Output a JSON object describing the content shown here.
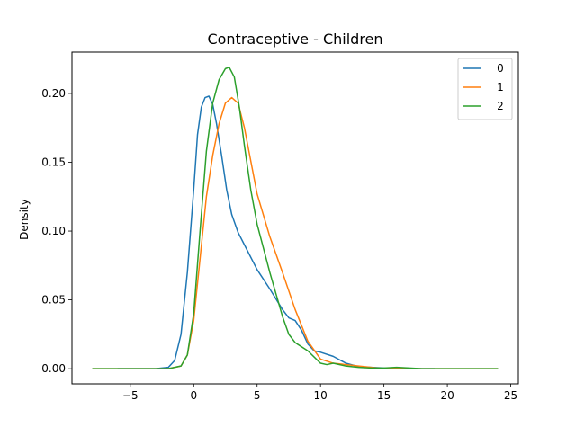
{
  "chart_data": {
    "type": "line",
    "title": "Contraceptive - Children",
    "xlabel": "",
    "ylabel": "Density",
    "xlim": [
      -9.6,
      25.6
    ],
    "ylim": [
      -0.011,
      0.23
    ],
    "xticks": [
      -5,
      0,
      5,
      10,
      15,
      20,
      25
    ],
    "xtick_labels": [
      "−5",
      "0",
      "5",
      "10",
      "15",
      "20",
      "25"
    ],
    "yticks": [
      0.0,
      0.05,
      0.1,
      0.15,
      0.2
    ],
    "ytick_labels": [
      "0.00",
      "0.05",
      "0.10",
      "0.15",
      "0.20"
    ],
    "grid": false,
    "legend_position": "top-right",
    "series": [
      {
        "name": "0",
        "color": "#1f77b4",
        "x": [
          -6.0,
          -3.0,
          -2.0,
          -1.5,
          -1.0,
          -0.5,
          0.0,
          0.3,
          0.6,
          0.9,
          1.2,
          1.5,
          1.8,
          2.2,
          2.6,
          3.0,
          3.5,
          4.0,
          5.0,
          6.0,
          7.0,
          7.5,
          8.0,
          8.5,
          9.0,
          9.5,
          10.0,
          11.0,
          12.0,
          13.0,
          14.0,
          15.0,
          16.0,
          17.0,
          19.0
        ],
        "y": [
          0.0,
          0.0,
          0.001,
          0.006,
          0.025,
          0.07,
          0.13,
          0.17,
          0.19,
          0.197,
          0.198,
          0.192,
          0.178,
          0.155,
          0.13,
          0.112,
          0.099,
          0.09,
          0.072,
          0.058,
          0.043,
          0.037,
          0.035,
          0.028,
          0.018,
          0.013,
          0.012,
          0.009,
          0.004,
          0.0015,
          0.001,
          0.0005,
          0.0003,
          0.0,
          0.0
        ]
      },
      {
        "name": "1",
        "color": "#ff7f0e",
        "x": [
          -8.0,
          -2.0,
          -1.0,
          -0.5,
          0.0,
          0.5,
          1.0,
          1.5,
          2.0,
          2.5,
          3.0,
          3.5,
          4.0,
          5.0,
          6.0,
          7.0,
          8.0,
          9.0,
          10.0,
          11.0,
          12.0,
          13.0,
          14.0,
          15.0,
          16.0,
          18.0,
          20.0,
          24.0
        ],
        "y": [
          0.0,
          0.0,
          0.002,
          0.01,
          0.035,
          0.08,
          0.125,
          0.155,
          0.178,
          0.193,
          0.197,
          0.193,
          0.175,
          0.127,
          0.096,
          0.07,
          0.043,
          0.02,
          0.007,
          0.004,
          0.003,
          0.002,
          0.001,
          0.0,
          0.0,
          0.0,
          0.0,
          0.0
        ]
      },
      {
        "name": "2",
        "color": "#2ca02c",
        "x": [
          -8.0,
          -2.0,
          -1.0,
          -0.5,
          0.0,
          0.5,
          1.0,
          1.5,
          2.0,
          2.5,
          2.8,
          3.2,
          3.6,
          4.0,
          4.5,
          5.0,
          6.0,
          7.0,
          7.5,
          8.0,
          9.0,
          10.0,
          10.5,
          11.0,
          12.0,
          13.0,
          14.0,
          15.0,
          16.0,
          17.0,
          18.0,
          20.0,
          24.0
        ],
        "y": [
          0.0,
          0.0,
          0.002,
          0.01,
          0.04,
          0.1,
          0.158,
          0.193,
          0.21,
          0.218,
          0.219,
          0.212,
          0.19,
          0.162,
          0.13,
          0.105,
          0.07,
          0.038,
          0.025,
          0.019,
          0.013,
          0.004,
          0.003,
          0.004,
          0.002,
          0.001,
          0.0005,
          0.0005,
          0.001,
          0.0005,
          0.0,
          0.0,
          0.0
        ]
      }
    ]
  }
}
